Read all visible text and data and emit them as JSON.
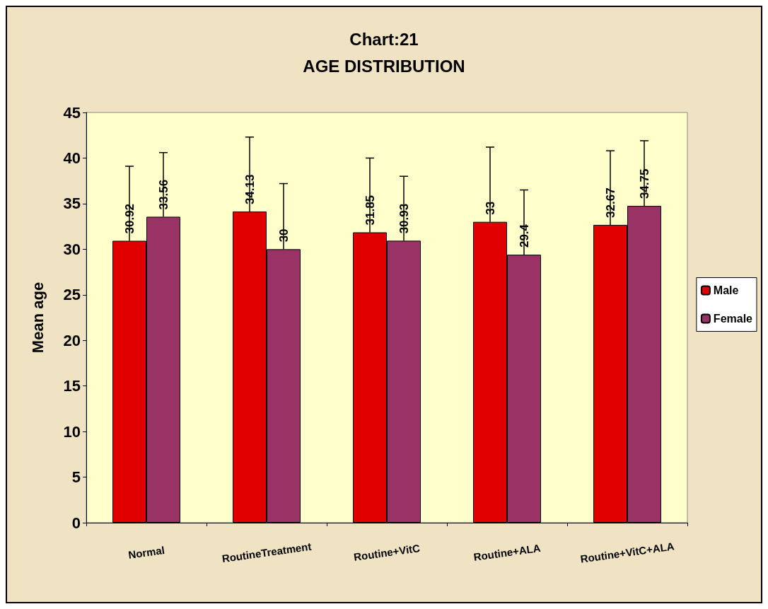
{
  "chart_data": {
    "type": "bar",
    "title": "Chart:21",
    "subtitle": "AGE DISTRIBUTION",
    "ylabel": "Mean age",
    "categories": [
      "Normal",
      "RoutineTreatment",
      "Routine+VitC",
      "Routine+ALA",
      "Routine+VitC+ALA"
    ],
    "series": [
      {
        "name": "Male",
        "color": "#e00000",
        "values": [
          30.92,
          34.13,
          31.85,
          33,
          32.67
        ],
        "errors": [
          [
            30.92,
            39.1
          ],
          [
            34.13,
            42.3
          ],
          [
            31.85,
            40.0
          ],
          [
            33,
            41.2
          ],
          [
            32.67,
            40.8
          ]
        ]
      },
      {
        "name": "Female",
        "color": "#993366",
        "values": [
          33.56,
          30,
          30.93,
          29.4,
          34.75
        ],
        "errors": [
          [
            33.56,
            40.6
          ],
          [
            30,
            37.2
          ],
          [
            30.93,
            38.0
          ],
          [
            29.4,
            36.5
          ],
          [
            34.75,
            41.9
          ]
        ]
      }
    ],
    "ylim": [
      0,
      45
    ],
    "yticks": [
      0,
      5,
      10,
      15,
      20,
      25,
      30,
      35,
      40,
      45
    ],
    "grid": false,
    "legend": "right",
    "data_labels": true
  }
}
